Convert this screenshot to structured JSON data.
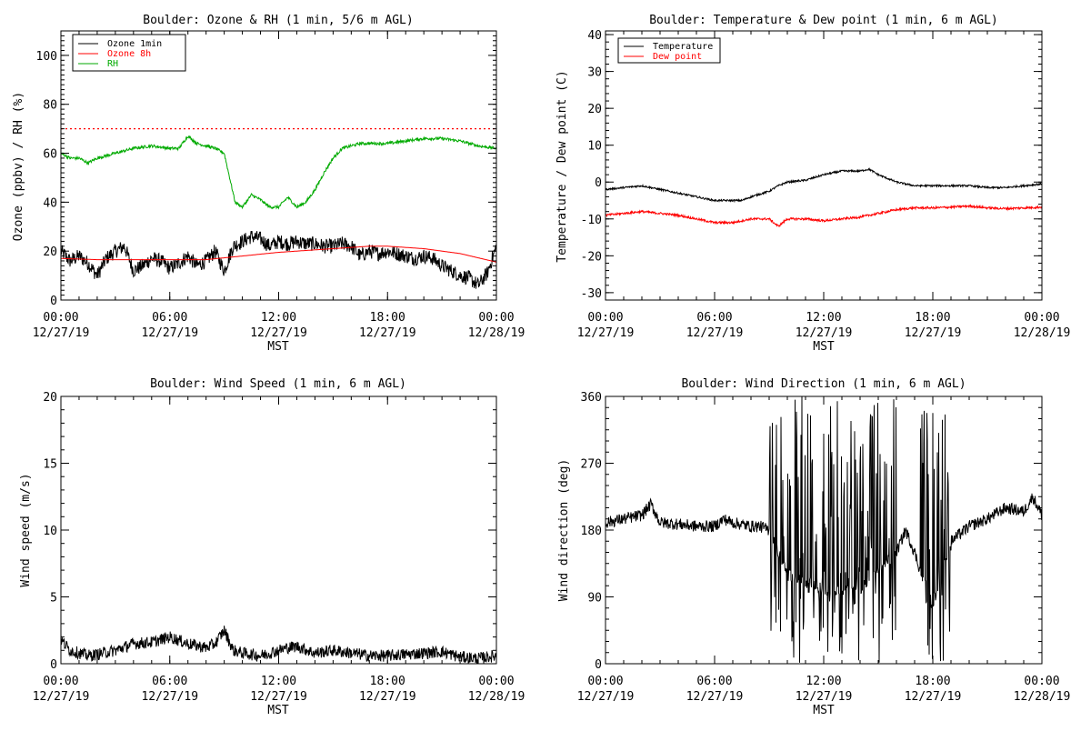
{
  "chart_data": [
    {
      "id": "ozone_rh",
      "type": "line",
      "title": "Boulder: Ozone & RH (1 min, 5/6 m AGL)",
      "xlabel": "MST",
      "ylabel": "Ozone (ppbv) / RH (%)",
      "xlim": [
        0,
        24
      ],
      "ylim": [
        0,
        110
      ],
      "x_ticks": [
        {
          "x": 0,
          "time": "00:00",
          "date": "12/27/19"
        },
        {
          "x": 6,
          "time": "06:00",
          "date": "12/27/19"
        },
        {
          "x": 12,
          "time": "12:00",
          "date": "12/27/19"
        },
        {
          "x": 18,
          "time": "18:00",
          "date": "12/27/19"
        },
        {
          "x": 24,
          "time": "00:00",
          "date": "12/28/19"
        }
      ],
      "y_ticks": [
        0,
        20,
        40,
        60,
        80,
        100
      ],
      "legend_placement": "top-left",
      "reference_lines": [
        {
          "y": 70,
          "color": "#ff0000",
          "style": "dotted"
        }
      ],
      "series": [
        {
          "name": "Ozone 1min",
          "color": "#000000",
          "noise": 3,
          "x": [
            0,
            0.5,
            1,
            1.5,
            2,
            2.5,
            3,
            3.5,
            4,
            4.5,
            5,
            5.5,
            6,
            6.5,
            7,
            7.5,
            8,
            8.5,
            9,
            9.5,
            10,
            10.5,
            11,
            11.5,
            12,
            12.5,
            13,
            13.5,
            14,
            14.5,
            15,
            15.5,
            16,
            16.5,
            17,
            17.5,
            18,
            18.5,
            19,
            19.5,
            20,
            20.5,
            21,
            21.5,
            22,
            22.5,
            23,
            23.5,
            24
          ],
          "y": [
            20,
            16,
            18,
            15,
            10,
            17,
            20,
            22,
            12,
            14,
            17,
            16,
            13,
            15,
            18,
            14,
            16,
            20,
            12,
            22,
            24,
            26,
            25,
            22,
            24,
            23,
            24,
            23,
            23,
            22,
            22,
            23,
            22,
            18,
            20,
            19,
            20,
            19,
            18,
            17,
            18,
            17,
            14,
            12,
            10,
            9,
            6,
            11,
            22
          ]
        },
        {
          "name": "Ozone 8h",
          "color": "#ff0000",
          "noise": 0,
          "x": [
            0,
            2,
            4,
            6,
            8,
            10,
            12,
            14,
            16,
            17,
            18,
            20,
            22,
            24
          ],
          "y": [
            17,
            16.5,
            16.5,
            16.5,
            16.5,
            18,
            19.5,
            20.5,
            21.5,
            22,
            22,
            21,
            19,
            15.5
          ]
        },
        {
          "name": "RH",
          "color": "#00aa00",
          "noise": 0.6,
          "x": [
            0,
            0.5,
            1,
            1.5,
            2,
            3,
            4,
            5,
            6,
            6.5,
            7,
            7.5,
            8,
            8.5,
            9,
            9.3,
            9.6,
            10,
            10.5,
            11,
            11.5,
            12,
            12.5,
            13,
            13.5,
            14,
            14.5,
            15,
            15.5,
            16,
            16.5,
            17,
            18,
            19,
            20,
            21,
            22,
            23,
            24
          ],
          "y": [
            60,
            58,
            58,
            56,
            58,
            60,
            62,
            63,
            62,
            62,
            67,
            64,
            63,
            62,
            60,
            50,
            40,
            38,
            43,
            41,
            38,
            38,
            42,
            38,
            40,
            45,
            52,
            58,
            62,
            63,
            64,
            64,
            64,
            65,
            66,
            66,
            65,
            63,
            62
          ]
        }
      ]
    },
    {
      "id": "temp_dew",
      "type": "line",
      "title": "Boulder: Temperature & Dew point (1 min, 6 m AGL)",
      "xlabel": "MST",
      "ylabel": "Temperature / Dew point (C)",
      "xlim": [
        0,
        24
      ],
      "ylim": [
        -32,
        41
      ],
      "x_ticks": [
        {
          "x": 0,
          "time": "00:00",
          "date": "12/27/19"
        },
        {
          "x": 6,
          "time": "06:00",
          "date": "12/27/19"
        },
        {
          "x": 12,
          "time": "12:00",
          "date": "12/27/19"
        },
        {
          "x": 18,
          "time": "18:00",
          "date": "12/27/19"
        },
        {
          "x": 24,
          "time": "00:00",
          "date": "12/28/19"
        }
      ],
      "y_ticks": [
        -30,
        -20,
        -10,
        0,
        10,
        20,
        30,
        40
      ],
      "legend_placement": "top-left",
      "series": [
        {
          "name": "Temperature",
          "color": "#000000",
          "noise": 0.25,
          "x": [
            0,
            1,
            2,
            3,
            4,
            5,
            6,
            7,
            7.5,
            8,
            9,
            9.5,
            10,
            11,
            12,
            13,
            14,
            14.5,
            15,
            16,
            17,
            18,
            19,
            20,
            21,
            22,
            23,
            24
          ],
          "y": [
            -2,
            -1.5,
            -1,
            -2,
            -3,
            -4,
            -5,
            -5,
            -5,
            -4,
            -2.5,
            -1,
            0,
            0.5,
            2,
            3,
            3,
            3.5,
            2,
            0,
            -1,
            -1,
            -1,
            -1,
            -1.5,
            -1.5,
            -1,
            -0.5
          ]
        },
        {
          "name": "Dew point",
          "color": "#ff0000",
          "noise": 0.3,
          "x": [
            0,
            1,
            2,
            3,
            4,
            5,
            6,
            7,
            8,
            9,
            9.5,
            10,
            11,
            12,
            13,
            14,
            15,
            16,
            17,
            18,
            19,
            20,
            21,
            22,
            23,
            24
          ],
          "y": [
            -9,
            -8.5,
            -8,
            -8.5,
            -9,
            -10,
            -11,
            -11,
            -10,
            -10,
            -12,
            -10,
            -10,
            -10.5,
            -10,
            -9.5,
            -8.5,
            -7.5,
            -7,
            -7,
            -6.8,
            -6.5,
            -7,
            -7.2,
            -7,
            -6.8
          ]
        }
      ]
    },
    {
      "id": "wind_speed",
      "type": "line",
      "title": "Boulder: Wind Speed (1 min, 6 m AGL)",
      "xlabel": "MST",
      "ylabel": "Wind speed (m/s)",
      "xlim": [
        0,
        24
      ],
      "ylim": [
        0,
        20
      ],
      "x_ticks": [
        {
          "x": 0,
          "time": "00:00",
          "date": "12/27/19"
        },
        {
          "x": 6,
          "time": "06:00",
          "date": "12/27/19"
        },
        {
          "x": 12,
          "time": "12:00",
          "date": "12/27/19"
        },
        {
          "x": 18,
          "time": "18:00",
          "date": "12/27/19"
        },
        {
          "x": 24,
          "time": "00:00",
          "date": "12/28/19"
        }
      ],
      "y_ticks": [
        0,
        5,
        10,
        15,
        20
      ],
      "series": [
        {
          "name": "",
          "color": "#000000",
          "noise": 0.45,
          "x": [
            0,
            0.5,
            1,
            1.5,
            2,
            3,
            4,
            5,
            6,
            7,
            8,
            8.5,
            9,
            9.5,
            10,
            11,
            12,
            12.5,
            13,
            14,
            15,
            16,
            17,
            18,
            19,
            20,
            21,
            22,
            23,
            24
          ],
          "y": [
            1.8,
            1,
            0.8,
            0.6,
            0.7,
            1,
            1.5,
            1.6,
            2,
            1.5,
            1.2,
            1.5,
            2.5,
            1,
            0.8,
            0.6,
            1,
            1.2,
            1.3,
            0.8,
            1,
            0.8,
            0.6,
            0.6,
            0.7,
            0.8,
            0.9,
            0.5,
            0.4,
            0.6
          ]
        }
      ]
    },
    {
      "id": "wind_dir",
      "type": "line",
      "title": "Boulder: Wind Direction (1 min, 6 m AGL)",
      "xlabel": "MST",
      "ylabel": "Wind direction (deg)",
      "xlim": [
        0,
        24
      ],
      "ylim": [
        0,
        360
      ],
      "x_ticks": [
        {
          "x": 0,
          "time": "00:00",
          "date": "12/27/19"
        },
        {
          "x": 6,
          "time": "06:00",
          "date": "12/27/19"
        },
        {
          "x": 12,
          "time": "12:00",
          "date": "12/27/19"
        },
        {
          "x": 18,
          "time": "18:00",
          "date": "12/27/19"
        },
        {
          "x": 24,
          "time": "00:00",
          "date": "12/28/19"
        }
      ],
      "y_ticks": [
        0,
        90,
        180,
        270,
        360
      ],
      "series": [
        {
          "name": "",
          "color": "#000000",
          "noise": 8,
          "erratic": [
            [
              9,
              16
            ],
            [
              17.3,
              19
            ]
          ],
          "x": [
            0,
            1,
            2,
            2.5,
            3,
            4,
            5,
            6,
            6.5,
            7,
            8,
            8.5,
            9,
            10,
            12,
            14,
            16,
            16.5,
            17,
            17.5,
            18,
            19,
            20,
            21,
            22,
            23,
            23.5,
            24
          ],
          "y": [
            190,
            195,
            200,
            215,
            190,
            188,
            185,
            185,
            195,
            190,
            185,
            185,
            180,
            120,
            100,
            100,
            150,
            180,
            150,
            110,
            80,
            165,
            185,
            195,
            210,
            205,
            225,
            200
          ]
        }
      ]
    }
  ]
}
